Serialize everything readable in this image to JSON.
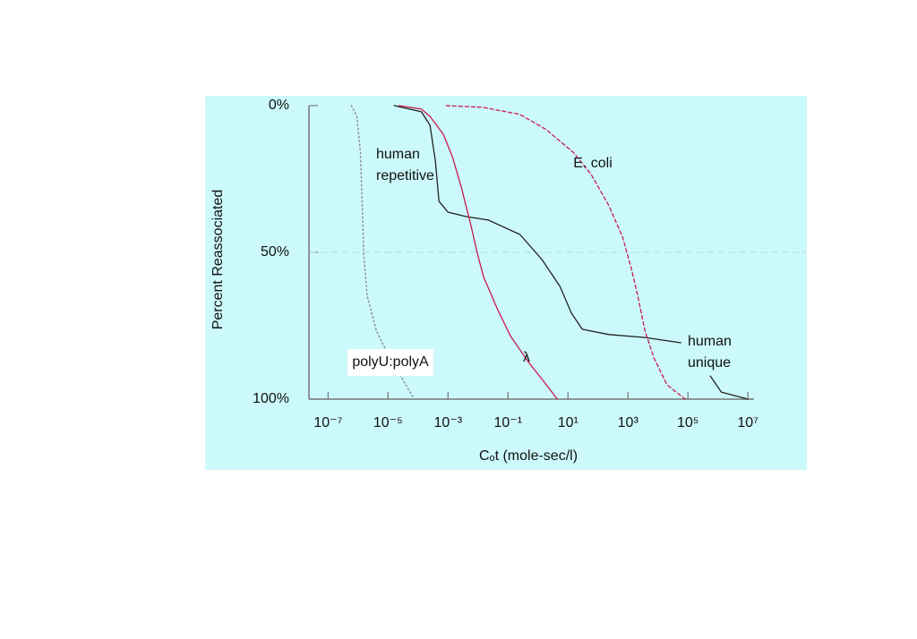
{
  "chart_data": {
    "type": "line",
    "x_scale": "log",
    "y_inverted": true,
    "xlim": [
      2.3e-08,
      16000000.0
    ],
    "xticks": [
      {
        "value": 1e-07,
        "label": "10⁻⁷"
      },
      {
        "value": 1e-05,
        "label": "10⁻⁵"
      },
      {
        "value": 0.001,
        "label": "10⁻³"
      },
      {
        "value": 0.1,
        "label": "10⁻¹"
      },
      {
        "value": 10,
        "label": "10¹"
      },
      {
        "value": 1000,
        "label": "10³"
      },
      {
        "value": 100000,
        "label": "10⁵"
      },
      {
        "value": 10000000,
        "label": "10⁷"
      }
    ],
    "ylim": [
      0,
      100
    ],
    "yticks": [
      {
        "value": 0,
        "label": "0%"
      },
      {
        "value": 50,
        "label": "50%"
      },
      {
        "value": 100,
        "label": "100%"
      }
    ],
    "grid": true,
    "x_label": "Cₒt (mole-sec/l)",
    "y_label": "Percent Reassociated",
    "background": "#ccf9fb",
    "series": [
      {
        "name": "polyU:polyA",
        "color": "#8a8a8a",
        "dash": "dotted",
        "x": [
          6e-07,
          9.1e-07,
          1.2e-06,
          1.35e-06,
          1.55e-06,
          2e-06,
          4.1e-06,
          1.15e-05,
          3.2e-05,
          7.4e-05
        ],
        "values": [
          0,
          3.7,
          15.9,
          31.1,
          50.6,
          64.6,
          76.8,
          86,
          93.6,
          100
        ]
      },
      {
        "color": "#222222",
        "dash": "solid",
        "x": [
          1.6e-05,
          0.00013,
          0.00025,
          0.00038,
          0.0005,
          0.001,
          0.004,
          0.022,
          0.25,
          1.35,
          5.4,
          13,
          30,
          230,
          3700,
          58000,
          100000,
          560000,
          1300000,
          10000000
        ],
        "values": [
          0,
          2.1,
          6.7,
          18.9,
          32.6,
          36.3,
          37.8,
          39,
          43.9,
          52.4,
          61.6,
          70.7,
          76.2,
          78,
          79,
          80.8,
          null,
          92.1,
          97.6,
          100
        ]
      },
      {
        "name": "λ",
        "color": "#c8194b",
        "dash": "solid",
        "x": [
          2.3e-05,
          0.00013,
          0.00025,
          0.0007,
          0.0014,
          0.0028,
          0.0056,
          0.0098,
          0.0155,
          0.044,
          0.12,
          0.49,
          1.9,
          4.4
        ],
        "values": [
          0,
          1.2,
          3.7,
          9.8,
          17.4,
          28,
          40.2,
          50.9,
          58.5,
          69.2,
          78.4,
          87.5,
          95.1,
          100
        ]
      },
      {
        "name": "E. coli",
        "color": "#c8194b",
        "dash": "dashed",
        "x": [
          0.00087,
          0.015,
          0.25,
          1.9,
          15,
          60,
          230,
          660,
          1300,
          2100,
          3700,
          7400,
          20000,
          81000
        ],
        "values": [
          0,
          0.6,
          3,
          8.2,
          15.9,
          23.5,
          34.1,
          44.8,
          55.5,
          64.6,
          76.8,
          86,
          95.1,
          100
        ]
      }
    ],
    "annotations": [
      {
        "lines": [
          "human",
          "repetitive"
        ]
      },
      {
        "lines": [
          "human",
          "unique"
        ]
      }
    ]
  }
}
